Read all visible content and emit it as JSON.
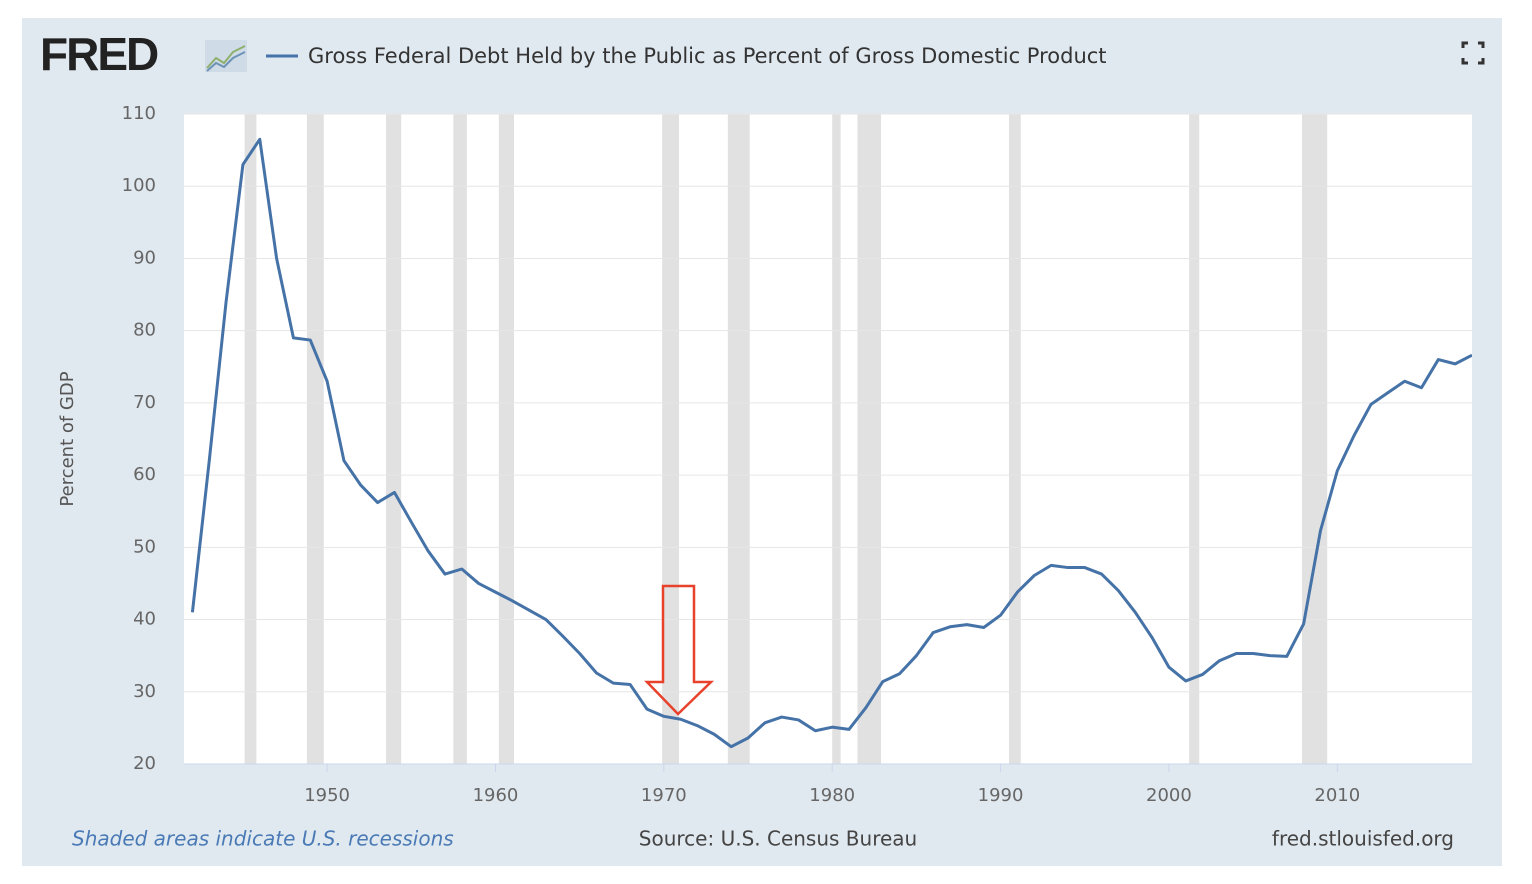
{
  "header": {
    "logo": "FRED"
  },
  "chart_data": {
    "type": "line",
    "y_label": "Percent of GDP",
    "x": [
      1942,
      1943,
      1944,
      1945,
      1946,
      1947,
      1948,
      1949,
      1950,
      1951,
      1952,
      1953,
      1954,
      1955,
      1956,
      1957,
      1958,
      1959,
      1960,
      1961,
      1962,
      1963,
      1964,
      1965,
      1966,
      1967,
      1968,
      1969,
      1970,
      1971,
      1972,
      1973,
      1974,
      1975,
      1976,
      1977,
      1978,
      1979,
      1980,
      1981,
      1982,
      1983,
      1984,
      1985,
      1986,
      1987,
      1988,
      1989,
      1990,
      1991,
      1992,
      1993,
      1994,
      1995,
      1996,
      1997,
      1998,
      1999,
      2000,
      2001,
      2002,
      2003,
      2004,
      2005,
      2006,
      2007,
      2008,
      2009,
      2010,
      2011,
      2012,
      2013,
      2014,
      2015,
      2016,
      2017,
      2018
    ],
    "series": [
      {
        "name": "Gross Federal Debt Held by the Public as Percent of Gross Domestic Product",
        "color": "#4572a7",
        "values": [
          41,
          62,
          84,
          103,
          106.5,
          90,
          79,
          78.7,
          73,
          62,
          58.6,
          56.2,
          57.6,
          53.5,
          49.5,
          46.3,
          47,
          45,
          43.8,
          42.6,
          41.3,
          40,
          37.7,
          35.3,
          32.6,
          31.2,
          31,
          27.6,
          26.6,
          26.2,
          25.3,
          24.1,
          22.4,
          23.6,
          25.7,
          26.5,
          26.1,
          24.6,
          25.1,
          24.8,
          27.8,
          31.4,
          32.5,
          35,
          38.2,
          39,
          39.3,
          38.9,
          40.6,
          43.8,
          46.1,
          47.5,
          47.2,
          47.2,
          46.3,
          44,
          41,
          37.5,
          33.4,
          31.5,
          32.4,
          34.3,
          35.3,
          35.3,
          35,
          34.9,
          39.4,
          52.3,
          60.6,
          65.5,
          69.8,
          71.4,
          73,
          72.1,
          76,
          75.4,
          76.6
        ]
      }
    ],
    "recessions": [
      [
        1945.1,
        1945.8
      ],
      [
        1948.8,
        1949.8
      ],
      [
        1953.5,
        1954.4
      ],
      [
        1957.5,
        1958.3
      ],
      [
        1960.2,
        1961.1
      ],
      [
        1969.9,
        1970.9
      ],
      [
        1973.8,
        1975.1
      ],
      [
        1980.0,
        1980.5
      ],
      [
        1981.5,
        1982.9
      ],
      [
        1990.5,
        1991.2
      ],
      [
        2001.2,
        2001.8
      ],
      [
        2007.9,
        2009.4
      ]
    ],
    "recession_color": "#e1e1e1",
    "xlim": [
      1941.5,
      2018
    ],
    "xticks": [
      1950,
      1960,
      1970,
      1980,
      1990,
      2000,
      2010
    ],
    "ylim": [
      20,
      110
    ],
    "yticks": [
      20,
      30,
      40,
      50,
      60,
      70,
      80,
      90,
      100,
      110
    ],
    "grid": true
  },
  "footer": {
    "note": "Shaded areas indicate U.S. recessions",
    "source": "Source: U.S. Census Bureau",
    "site": "fred.stlouisfed.org"
  }
}
